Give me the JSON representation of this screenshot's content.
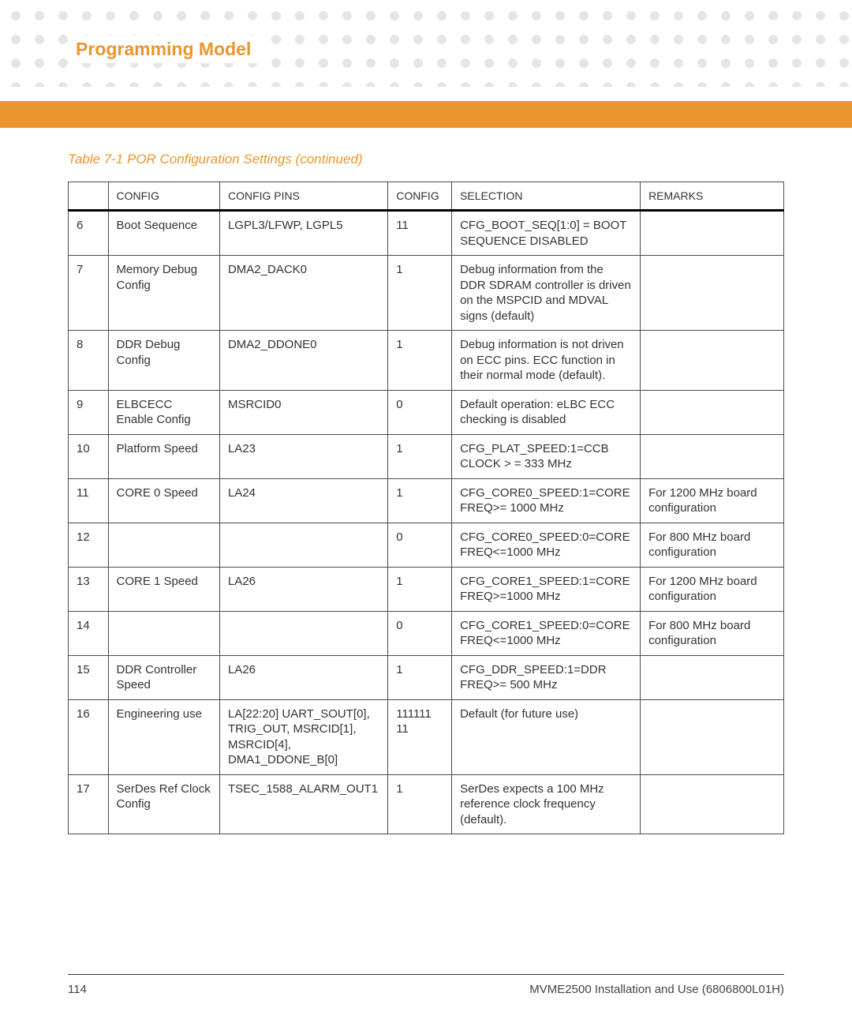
{
  "section_title": "Programming Model",
  "caption": "Table 7-1 POR Configuration Settings  (continued)",
  "headers": {
    "col0": "",
    "col1": "CONFIG",
    "col2": "CONFIG PINS",
    "col3": "CONFIG",
    "col4": "SELECTION",
    "col5": "REMARKS"
  },
  "rows": [
    {
      "n": "6",
      "config": "Boot Sequence",
      "pins": "LGPL3/LFWP, LGPL5",
      "cfg": "11",
      "sel": "CFG_BOOT_SEQ[1:0] = BOOT SEQUENCE DISABLED",
      "rem": ""
    },
    {
      "n": "7",
      "config": "Memory Debug Config",
      "pins": "DMA2_DACK0",
      "cfg": "1",
      "sel": "Debug information from the DDR SDRAM controller is driven on the MSPCID and MDVAL signs (default)",
      "rem": ""
    },
    {
      "n": "8",
      "config": "DDR Debug Config",
      "pins": "DMA2_DDONE0",
      "cfg": "1",
      "sel": "Debug information is not driven on ECC pins. ECC function in their normal mode (default).",
      "rem": ""
    },
    {
      "n": "9",
      "config": "ELBCECC Enable Config",
      "pins": "MSRCID0",
      "cfg": "0",
      "sel": "Default operation: eLBC ECC checking is disabled",
      "rem": ""
    },
    {
      "n": "10",
      "config": "Platform Speed",
      "pins": "LA23",
      "cfg": "1",
      "sel": "CFG_PLAT_SPEED:1=CCB CLOCK > = 333 MHz",
      "rem": ""
    },
    {
      "n": "11",
      "config": "CORE 0 Speed",
      "pins": "LA24",
      "cfg": "1",
      "sel": "CFG_CORE0_SPEED:1=CORE FREQ>= 1000 MHz",
      "rem": "For 1200 MHz board configuration"
    },
    {
      "n": "12",
      "config": "",
      "pins": "",
      "cfg": "0",
      "sel": "CFG_CORE0_SPEED:0=CORE FREQ<=1000 MHz",
      "rem": "For 800 MHz board configuration"
    },
    {
      "n": "13",
      "config": "CORE 1 Speed",
      "pins": "LA26",
      "cfg": "1",
      "sel": "CFG_CORE1_SPEED:1=CORE FREQ>=1000 MHz",
      "rem": "For 1200 MHz board configuration"
    },
    {
      "n": "14",
      "config": "",
      "pins": "",
      "cfg": "0",
      "sel": "CFG_CORE1_SPEED:0=CORE FREQ<=1000 MHz",
      "rem": "For 800 MHz board configuration"
    },
    {
      "n": "15",
      "config": "DDR Controller Speed",
      "pins": "LA26",
      "cfg": "1",
      "sel": "CFG_DDR_SPEED:1=DDR FREQ>= 500 MHz",
      "rem": ""
    },
    {
      "n": "16",
      "config": "Engineering use",
      "pins": "LA[22:20] UART_SOUT[0], TRIG_OUT, MSRCID[1], MSRCID[4], DMA1_DDONE_B[0]",
      "cfg": "111111 11",
      "sel": "Default (for future use)",
      "rem": ""
    },
    {
      "n": "17",
      "config": "SerDes Ref Clock Config",
      "pins": "TSEC_1588_ALARM_OUT1",
      "cfg": "1",
      "sel": "SerDes expects a 100 MHz reference clock frequency (default).",
      "rem": ""
    }
  ],
  "footer": {
    "page": "114",
    "doc": "MVME2500 Installation and Use (6806800L01H)"
  },
  "colors": {
    "accent": "#e9962e",
    "text": "#333333",
    "grid": "#4a4a4a",
    "dot": "#e5e5e5",
    "bg": "#ffffff"
  }
}
